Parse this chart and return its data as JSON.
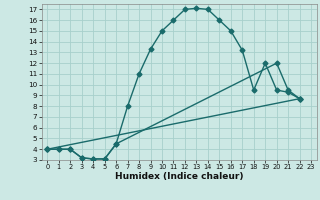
{
  "xlabel": "Humidex (Indice chaleur)",
  "background_color": "#cce8e4",
  "grid_color": "#a8d0cc",
  "line_color": "#1a6b6b",
  "xlim": [
    -0.5,
    23.5
  ],
  "ylim": [
    3,
    17.5
  ],
  "xticks": [
    0,
    1,
    2,
    3,
    4,
    5,
    6,
    7,
    8,
    9,
    10,
    11,
    12,
    13,
    14,
    15,
    16,
    17,
    18,
    19,
    20,
    21,
    22,
    23
  ],
  "yticks": [
    3,
    4,
    5,
    6,
    7,
    8,
    9,
    10,
    11,
    12,
    13,
    14,
    15,
    16,
    17
  ],
  "line1_x": [
    0,
    1,
    2,
    3,
    4,
    5,
    6,
    7,
    8,
    9,
    10,
    11,
    12,
    13,
    14,
    15,
    16,
    17,
    18,
    19,
    20,
    21,
    22
  ],
  "line1_y": [
    4,
    4,
    4,
    3.2,
    3.1,
    3.1,
    4.5,
    8,
    11,
    13.3,
    15,
    16,
    17,
    17.1,
    17,
    16,
    15,
    13.2,
    9.5,
    12,
    9.5,
    9.3,
    8.7
  ],
  "line2_x": [
    0,
    1,
    2,
    3,
    4,
    5,
    6,
    20,
    21,
    22
  ],
  "line2_y": [
    4,
    4,
    4,
    3.2,
    3.1,
    3.1,
    4.5,
    12,
    9.5,
    8.7
  ],
  "line3_x": [
    0,
    22
  ],
  "line3_y": [
    4,
    8.7
  ],
  "markersize": 2.5,
  "linewidth": 1.0
}
